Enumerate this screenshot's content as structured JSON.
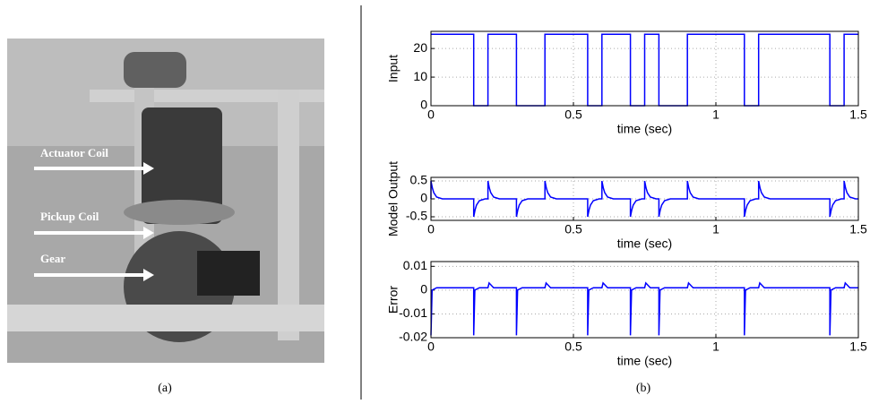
{
  "panels": {
    "a": {
      "caption": "(a)",
      "labels": [
        "Actuator Coil",
        "Pickup Coil",
        "Gear"
      ]
    },
    "b": {
      "caption": "(b)"
    }
  },
  "chart_data": [
    {
      "type": "line",
      "ylabel": "Input",
      "xlabel": "time (sec)",
      "grid": true,
      "xlim": [
        0,
        1.5
      ],
      "xticks": [
        0,
        0.5,
        1,
        1.5
      ],
      "ylim": [
        0,
        26
      ],
      "yticks": [
        0,
        10,
        20
      ],
      "x": [
        0,
        0.15,
        0.15,
        0.2,
        0.2,
        0.3,
        0.3,
        0.4,
        0.4,
        0.55,
        0.55,
        0.6,
        0.6,
        0.7,
        0.7,
        0.75,
        0.75,
        0.8,
        0.8,
        0.9,
        0.9,
        1.1,
        1.1,
        1.15,
        1.15,
        1.4,
        1.4,
        1.45,
        1.45,
        1.5
      ],
      "series": [
        {
          "color": "#0000ff",
          "values": [
            25,
            25,
            0,
            0,
            25,
            25,
            0,
            0,
            25,
            25,
            0,
            0,
            25,
            25,
            0,
            0,
            25,
            25,
            0,
            0,
            25,
            25,
            0,
            0,
            25,
            25,
            0,
            0,
            25,
            25
          ]
        }
      ]
    },
    {
      "type": "line",
      "ylabel": "Model Output",
      "xlabel": "time (sec)",
      "grid": true,
      "xlim": [
        0,
        1.5
      ],
      "xticks": [
        0,
        0.5,
        1,
        1.5
      ],
      "ylim": [
        -0.6,
        0.6
      ],
      "yticks": [
        -0.5,
        0,
        0.5
      ],
      "x": [
        0,
        0,
        0.005,
        0.01,
        0.02,
        0.04,
        0.15,
        0.15,
        0.155,
        0.16,
        0.17,
        0.19,
        0.2,
        0.2,
        0.205,
        0.21,
        0.22,
        0.24,
        0.3,
        0.3,
        0.305,
        0.31,
        0.32,
        0.34,
        0.4,
        0.4,
        0.405,
        0.41,
        0.42,
        0.44,
        0.55,
        0.55,
        0.555,
        0.56,
        0.57,
        0.59,
        0.6,
        0.6,
        0.605,
        0.61,
        0.62,
        0.64,
        0.7,
        0.7,
        0.705,
        0.71,
        0.72,
        0.74,
        0.75,
        0.75,
        0.755,
        0.76,
        0.77,
        0.79,
        0.8,
        0.8,
        0.805,
        0.81,
        0.82,
        0.84,
        0.9,
        0.9,
        0.905,
        0.91,
        0.92,
        0.94,
        1.1,
        1.1,
        1.105,
        1.11,
        1.12,
        1.14,
        1.15,
        1.15,
        1.155,
        1.16,
        1.17,
        1.19,
        1.4,
        1.4,
        1.405,
        1.41,
        1.42,
        1.44,
        1.45,
        1.45,
        1.455,
        1.46,
        1.47,
        1.49,
        1.5
      ],
      "series": [
        {
          "color": "#0000ff",
          "values": [
            0,
            0.5,
            0.3,
            0.17,
            0.05,
            0,
            0,
            -0.5,
            -0.3,
            -0.17,
            -0.05,
            0,
            0,
            0.5,
            0.3,
            0.17,
            0.05,
            0,
            0,
            -0.5,
            -0.3,
            -0.17,
            -0.05,
            0,
            0,
            0.5,
            0.3,
            0.17,
            0.05,
            0,
            0,
            -0.5,
            -0.3,
            -0.17,
            -0.05,
            0,
            0,
            0.5,
            0.3,
            0.17,
            0.05,
            0,
            0,
            -0.5,
            -0.3,
            -0.17,
            -0.05,
            0,
            0,
            0.5,
            0.3,
            0.17,
            0.05,
            0,
            0,
            -0.5,
            -0.3,
            -0.17,
            -0.05,
            0,
            0,
            0.5,
            0.3,
            0.17,
            0.05,
            0,
            0,
            -0.5,
            -0.3,
            -0.17,
            -0.05,
            0,
            0,
            0.5,
            0.3,
            0.17,
            0.05,
            0,
            0,
            -0.5,
            -0.3,
            -0.17,
            -0.05,
            0,
            0,
            0.5,
            0.3,
            0.17,
            0.05,
            0,
            0
          ]
        }
      ]
    },
    {
      "type": "line",
      "ylabel": "Error",
      "xlabel": "time (sec)",
      "grid": true,
      "xlim": [
        0,
        1.5
      ],
      "xticks": [
        0,
        0.5,
        1,
        1.5
      ],
      "ylim": [
        -0.02,
        0.012
      ],
      "yticks": [
        -0.02,
        -0.01,
        0,
        0.01
      ],
      "x": [
        0,
        0.004,
        0.02,
        0.15,
        0.15,
        0.154,
        0.17,
        0.2,
        0.204,
        0.22,
        0.3,
        0.3,
        0.304,
        0.32,
        0.4,
        0.404,
        0.42,
        0.55,
        0.55,
        0.554,
        0.57,
        0.6,
        0.604,
        0.62,
        0.7,
        0.7,
        0.704,
        0.72,
        0.75,
        0.754,
        0.77,
        0.8,
        0.8,
        0.804,
        0.82,
        0.9,
        0.904,
        0.92,
        1.1,
        1.1,
        1.104,
        1.12,
        1.15,
        1.154,
        1.17,
        1.4,
        1.4,
        1.404,
        1.42,
        1.45,
        1.454,
        1.47,
        1.5
      ],
      "series": [
        {
          "color": "#0000ff",
          "values": [
            -0.019,
            0,
            0.001,
            0.001,
            -0.019,
            0,
            0.001,
            0.001,
            0.003,
            0.001,
            0.001,
            -0.019,
            0,
            0.001,
            0.001,
            0.003,
            0.001,
            0.001,
            -0.019,
            0,
            0.001,
            0.001,
            0.003,
            0.001,
            0.001,
            -0.019,
            0,
            0.001,
            0.001,
            0.003,
            0.001,
            0.001,
            -0.019,
            0,
            0.001,
            0.001,
            0.003,
            0.001,
            0.001,
            -0.019,
            0,
            0.001,
            0.001,
            0.003,
            0.001,
            0.001,
            -0.019,
            0,
            0.001,
            0.001,
            0.003,
            0.001,
            0.001
          ]
        }
      ]
    }
  ]
}
